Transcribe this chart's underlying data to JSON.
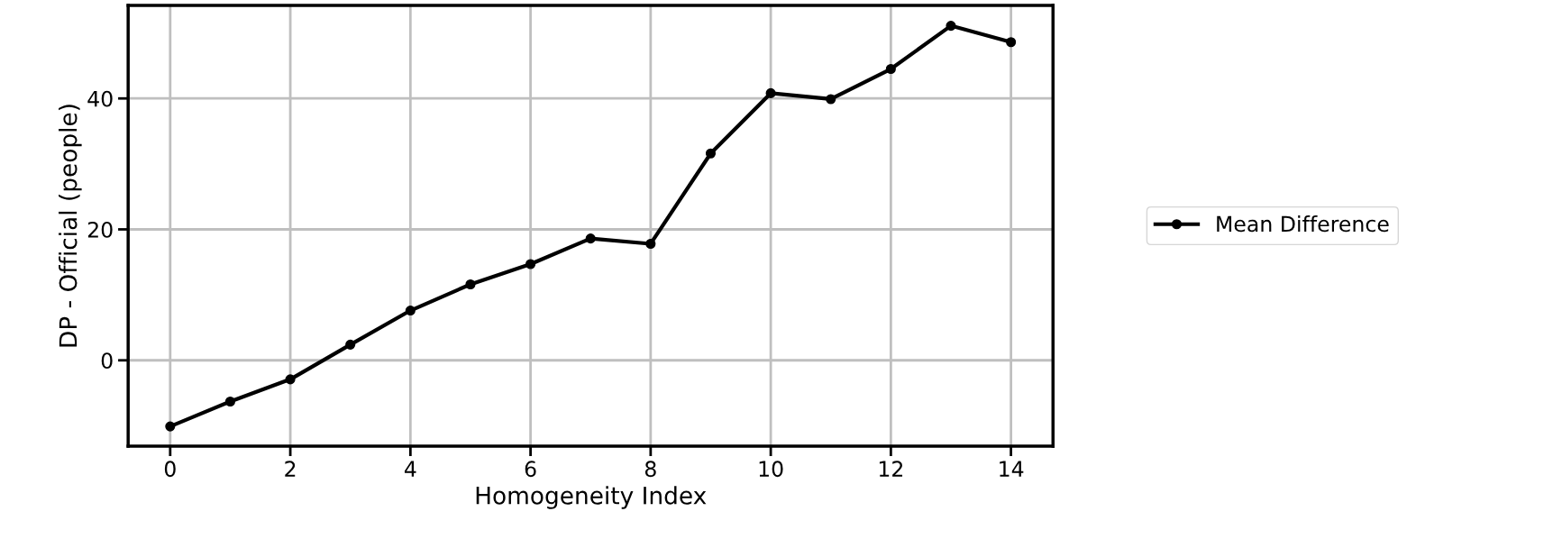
{
  "chart_data": {
    "type": "line",
    "xlabel": "Homogeneity Index",
    "ylabel": "DP - Official (people)",
    "x": [
      0,
      1,
      2,
      3,
      4,
      5,
      6,
      7,
      8,
      9,
      10,
      11,
      12,
      13,
      14
    ],
    "series": [
      {
        "name": "Mean Difference",
        "color": "#000000",
        "values": [
          -10.1,
          -6.3,
          -2.9,
          2.4,
          7.6,
          11.6,
          14.7,
          18.6,
          17.8,
          31.6,
          40.8,
          39.9,
          44.5,
          51.1,
          48.6
        ]
      }
    ],
    "xlim": [
      -0.7,
      14.7
    ],
    "xticks": [
      0,
      2,
      4,
      6,
      8,
      10,
      12,
      14
    ],
    "ylim": [
      -13.1,
      54.2
    ],
    "yticks": [
      0,
      20,
      40
    ],
    "grid": true,
    "legend": "right",
    "marker": "circle",
    "line_style": "solid"
  }
}
